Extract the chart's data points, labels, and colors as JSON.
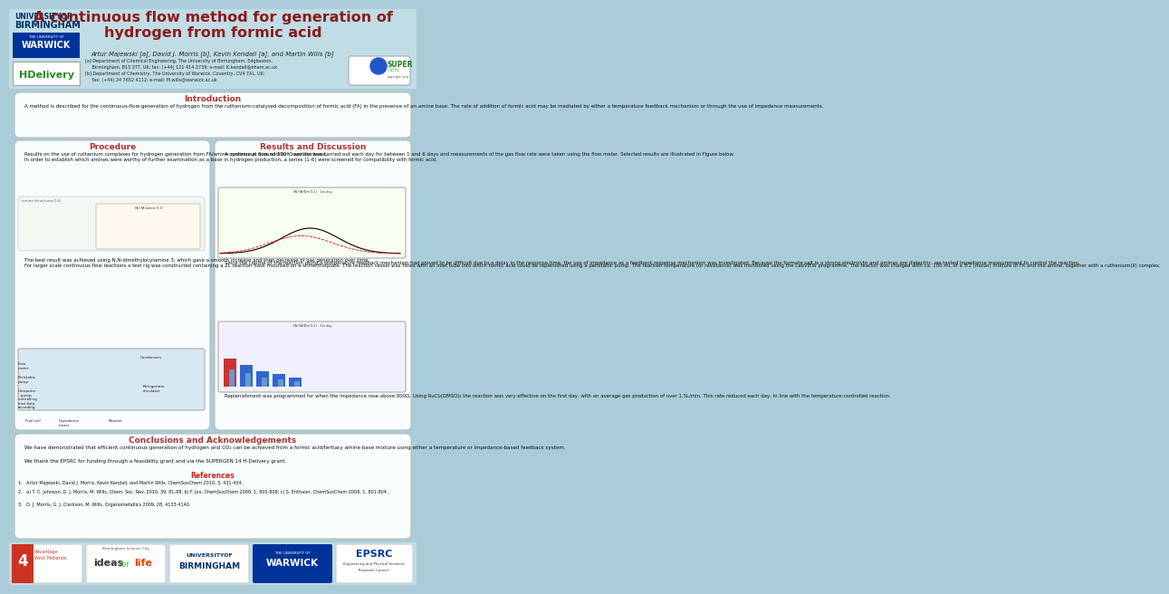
{
  "bg": "#aaccd8",
  "header_bg": "#c0dde6",
  "footer_bg": "#c0dde6",
  "box_bg": "#f8fefe",
  "box_ec": "#bbbbbb",
  "title": "A continuous flow method for generation of\nhydrogen from formic acid",
  "title_color": "#8b1a1a",
  "title_fs": 11.5,
  "authors": "Artur Majewski [a], David J. Morris [b], Kevin Kendall [a], and Martin Wills [b]",
  "affil1": "[a] Department of Chemical Engineering, The University of Birmingham, Edgbaston,",
  "affil2": "     Birmingham, B15 2TT, UK; fax: (+44) 121 414 2739; e-mail: K.kendall@bham.ac.uk",
  "affil3": "[b] Department of Chemistry, The University of Warwick, Coventry, CV4 7AL, UK;",
  "affil4": "     fax: (+44) 24 7652 4112; e-mail: M.wills@warwick.ac.uk",
  "sec_title_color": "#b03030",
  "intro_title": "Introduction",
  "intro_body": "    A method is described for the continuous-flow generation of hydrogen from the ruthenium-catalysed decomposition of formic acid (FA) in the presence of an amine base. The rate of addition of formic acid may be mediated by either a temperature feedback mechanism or through the use of impedence measurements.",
  "proc_title": "Procedure",
  "proc_p1": "    Results on the use of ruthenium complexes for hydrogen generation from FA/amine systems at around 120°C are disclosed.\n    In order to establish which amines were worthy of further examination as a base in hydrogen production, a series (1-6) were screened for compatibility with formic acid.",
  "proc_p2": "    The best result was achieved using N,N-dimethylocylamine 3, which gave a smooth increase and then decrease of gas generation over time.\n    For larger scale continuous flow reactions a test rig was constructed containing a 2L reaction flask mounted on a stirrer/hotplate. The reaction vessel was fitted with an inlet tube into which formic acid could be replenished using a peristaltic pump. The reaction temperature (or resistance) was monitored using the LabVIEW programme. The reactor was charged with ca. 100 mL of a 5:2 (molar) mixture of FA and the amine, together with a ruthenium(II) complex.",
  "proc_labels": [
    [
      "Flow\nmeter",
      10,
      390
    ],
    [
      "Condensers",
      145,
      383
    ],
    [
      "Peristaltic\npump",
      10,
      405
    ],
    [
      "Computer\n- pump\ncontrolling\nand data\nrecording",
      10,
      420
    ],
    [
      "Refrigerator\ncirculator",
      148,
      415
    ],
    [
      "Fuel cell",
      18,
      453
    ],
    [
      "Impedance\nmeter",
      55,
      453
    ],
    [
      "Reactor",
      110,
      453
    ]
  ],
  "res_title": "Results and Discussion",
  "res_p1": "    A continuous flow addition reaction was carried out each day for between 1 and 6 days and measurements of the gas flow rate were taken using the flow meter. Selected results are illustrated in Figure below.",
  "res_p2": "    Since the control of the reaction using a temperature feedback mechanism had proved to be difficult due to a delay in the response time, the use of impedance as a feedback response mechanism was investigated. Because the formate salt is a strong electrolyte and amines are dielectric, we tested impedance measurement to control the reaction.",
  "res_p3": "    Replenishment was programmed for when the impedance rose above 800Ω. Using RuCl₂(DMSO)₄ the reaction was very effective on the first day, with an average gas production of over 1.5L/min. This rate reduced each day, in line with the temperature-controlled reaction.",
  "concl_title": "Conclusions and Acknowledgements",
  "concl_p1": "    We have demonstrated that efficient continuous generation of hydrogen and CO₂ can be achieved from a formic acid/tertiary amine base mixture using either a temperature or impedance-based feedback system.",
  "concl_p2": "    We thank the EPSRC for funding through a feasibility grant and via the SUPERGEN 14 H-Delivery grant.",
  "refs_title": "References",
  "ref1": "1.   Artur Majewski, David J. Morris, Kevin Kendall, and Martin Wills, ChemSusChem 2010, 3, 431-434.",
  "ref2": "2.   a) T. C. Johnson, D. J. Morris, M. Wills, Chem. Soc. Rev. 2010, 39, 81-88; b) F. Joo, ChemSusChem 2008, 1, 805-808; c) S. Enthaler, ChemSusChem 2008, 1, 801-804.",
  "ref3": "3.   D. J. Morris, G. J. Clarkson, M. Wills, Organometallics 2009, 28, 4133-4140.",
  "warwick_blue": "#003399",
  "bham_blue": "#003366",
  "epsrc_blue": "#003399",
  "green_hd": "#228B22"
}
